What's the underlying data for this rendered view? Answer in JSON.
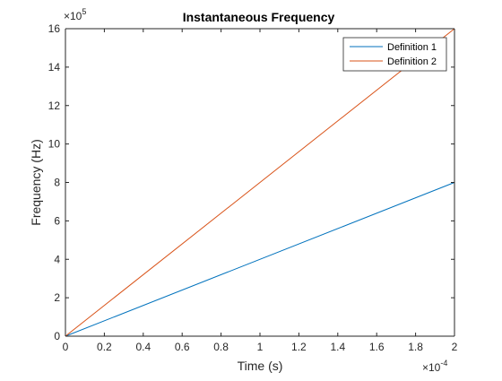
{
  "chart_data": {
    "type": "line",
    "title": "Instantaneous Frequency",
    "xlabel": "Time (s)",
    "ylabel": "Frequency (Hz)",
    "xlim": [
      0,
      0.0002
    ],
    "ylim": [
      0,
      1600000
    ],
    "x_exponent_label": "×10",
    "x_exponent_power": "-4",
    "y_exponent_label": "×10",
    "y_exponent_power": "5",
    "x_ticks": [
      0,
      2e-05,
      4e-05,
      6e-05,
      8e-05,
      0.0001,
      0.00012,
      0.00014,
      0.00016,
      0.00018,
      0.0002
    ],
    "x_tick_labels": [
      "0",
      "0.2",
      "0.4",
      "0.6",
      "0.8",
      "1",
      "1.2",
      "1.4",
      "1.6",
      "1.8",
      "2"
    ],
    "y_ticks": [
      0,
      200000,
      400000,
      600000,
      800000,
      1000000,
      1200000,
      1400000,
      1600000
    ],
    "y_tick_labels": [
      "0",
      "2",
      "4",
      "6",
      "8",
      "10",
      "12",
      "14",
      "16"
    ],
    "grid": false,
    "legend_position": "top-right",
    "series": [
      {
        "name": "Definition 1",
        "color": "#0072BD",
        "x": [
          0,
          0.0002
        ],
        "y": [
          0,
          800000
        ]
      },
      {
        "name": "Definition 2",
        "color": "#D95319",
        "x": [
          0,
          0.0002
        ],
        "y": [
          0,
          1600000
        ]
      }
    ]
  }
}
